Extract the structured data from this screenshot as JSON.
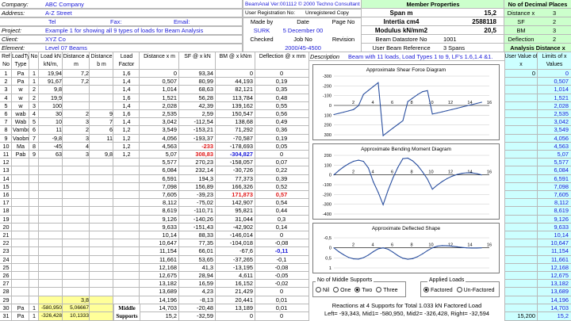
{
  "header_left": [
    {
      "label": "Company:",
      "value": "ABC Company"
    },
    {
      "label": "Address:",
      "value": "A-Z Street"
    },
    {
      "label": "",
      "value": ""
    },
    {
      "label": "Project:",
      "value": "Example 1 for showing all 9 types of loads for Beam Analysis"
    },
    {
      "label": "Client:",
      "value": "XYZ Co"
    },
    {
      "label": "Element:",
      "value": "Level 07 Beams"
    }
  ],
  "contact": {
    "tel": "Tel",
    "fax": "Fax:",
    "email": "Email:"
  },
  "program": {
    "name": "BeamAnal  Ver:001112  © 2000 Techno Consultants",
    "reg_label": "User Registration No:",
    "reg_value": "Unregistered Copy"
  },
  "made_by": {
    "made_by_label": "Made by",
    "date_label": "Date",
    "page_label": "Page No",
    "made_by": "SURK",
    "date": "5 December 00",
    "checked_label": "Checked",
    "job_label": "Job No",
    "revision_label": "Revision",
    "job_no": "2000/45-4500"
  },
  "member": {
    "title": "Member Properties",
    "rows": [
      {
        "label": "Span m",
        "value": "15,2"
      },
      {
        "label": "Intertia cm4",
        "value": "2588118"
      },
      {
        "label": "Modulus kN/mm2",
        "value": "20,5"
      },
      {
        "label": "Beam Datastore No",
        "value": "1001"
      },
      {
        "label": "User Beam Reference",
        "value": "3 Spans"
      }
    ]
  },
  "decimals": {
    "title": "No of Decimal Places",
    "rows": [
      {
        "label": "Distance x",
        "value": "3"
      },
      {
        "label": "SF",
        "value": "2"
      },
      {
        "label": "BM",
        "value": "3"
      },
      {
        "label": "Deflection",
        "value": "2"
      }
    ]
  },
  "analysis": {
    "title": "Analysis Distance x",
    "col1": "User Value of x",
    "col2": "Limits of x Values",
    "user_first": "0",
    "user_last": "15,200",
    "limits": [
      "0",
      "0,507",
      "1,014",
      "1,521",
      "2,028",
      "2,535",
      "3,042",
      "3,549",
      "4,056",
      "4,563",
      "5,07",
      "5,577",
      "6,084",
      "6,591",
      "7,098",
      "7,605",
      "8,112",
      "8,619",
      "9,126",
      "9,633",
      "10,14",
      "10,647",
      "11,154",
      "11,661",
      "12,168",
      "12,675",
      "13,182",
      "13,689",
      "14,196",
      "14,703",
      "15,2"
    ]
  },
  "load_headers": [
    "Ref No",
    "LoadType Type",
    "No",
    "Load kN kN/m, kNm",
    "Distance a m",
    "Distance b m",
    "Load Factor"
  ],
  "result_headers": [
    "Distance x m",
    "SF @ x kN",
    "BM @ x kNm",
    "Deflection @ x mm"
  ],
  "description_label": "Description",
  "description": "Beam with 11 loads, Load Types 1 to 9, LF's 1.6,1.4 &1.",
  "loads": [
    {
      "ref": "1",
      "type": "Pa",
      "no": "1",
      "load": "19,94",
      "a": "7,2",
      "b": "",
      "lf": "1,6"
    },
    {
      "ref": "2",
      "type": "Pa",
      "no": "1",
      "load": "91,67",
      "a": "7,2",
      "b": "",
      "lf": "1,4"
    },
    {
      "ref": "3",
      "type": "w",
      "no": "2",
      "load": "9,8",
      "a": "",
      "b": "",
      "lf": "1,4"
    },
    {
      "ref": "4",
      "type": "w",
      "no": "2",
      "load": "19,9",
      "a": "",
      "b": "",
      "lf": "1,6"
    },
    {
      "ref": "5",
      "type": "w",
      "no": "3",
      "load": "100",
      "a": "",
      "b": "",
      "lf": "1,4"
    },
    {
      "ref": "6",
      "type": "wab",
      "no": "4",
      "load": "30",
      "a": "2",
      "b": "9",
      "lf": "1,6"
    },
    {
      "ref": "7",
      "type": "Wab",
      "no": "5",
      "load": "10",
      "a": "3",
      "b": "7",
      "lf": "1,4"
    },
    {
      "ref": "8",
      "type": "Vambo",
      "no": "6",
      "load": "11",
      "a": "2",
      "b": "6",
      "lf": "1,2"
    },
    {
      "ref": "9",
      "type": "Vaobm",
      "no": "7",
      "load": "-9,8",
      "a": "3",
      "b": "11",
      "lf": "1,2"
    },
    {
      "ref": "10",
      "type": "Ma",
      "no": "8",
      "load": "-45",
      "a": "4",
      "b": "",
      "lf": "1,2"
    },
    {
      "ref": "11",
      "type": "Pab",
      "no": "9",
      "load": "63",
      "a": "3",
      "b": "9,8",
      "lf": "1,2"
    },
    {
      "ref": "12",
      "type": "",
      "no": "",
      "load": "",
      "a": "",
      "b": "",
      "lf": ""
    },
    {
      "ref": "13",
      "type": "",
      "no": "",
      "load": "",
      "a": "",
      "b": "",
      "lf": ""
    },
    {
      "ref": "14",
      "type": "",
      "no": "",
      "load": "",
      "a": "",
      "b": "",
      "lf": ""
    },
    {
      "ref": "15",
      "type": "",
      "no": "",
      "load": "",
      "a": "",
      "b": "",
      "lf": ""
    },
    {
      "ref": "16",
      "type": "",
      "no": "",
      "load": "",
      "a": "",
      "b": "",
      "lf": ""
    },
    {
      "ref": "17",
      "type": "",
      "no": "",
      "load": "",
      "a": "",
      "b": "",
      "lf": ""
    },
    {
      "ref": "18",
      "type": "",
      "no": "",
      "load": "",
      "a": "",
      "b": "",
      "lf": ""
    },
    {
      "ref": "19",
      "type": "",
      "no": "",
      "load": "",
      "a": "",
      "b": "",
      "lf": ""
    },
    {
      "ref": "20",
      "type": "",
      "no": "",
      "load": "",
      "a": "",
      "b": "",
      "lf": ""
    },
    {
      "ref": "21",
      "type": "",
      "no": "",
      "load": "",
      "a": "",
      "b": "",
      "lf": ""
    },
    {
      "ref": "22",
      "type": "",
      "no": "",
      "load": "",
      "a": "",
      "b": "",
      "lf": ""
    },
    {
      "ref": "23",
      "type": "",
      "no": "",
      "load": "",
      "a": "",
      "b": "",
      "lf": ""
    },
    {
      "ref": "24",
      "type": "",
      "no": "",
      "load": "",
      "a": "",
      "b": "",
      "lf": ""
    },
    {
      "ref": "25",
      "type": "",
      "no": "",
      "load": "",
      "a": "",
      "b": "",
      "lf": ""
    },
    {
      "ref": "26",
      "type": "",
      "no": "",
      "load": "",
      "a": "",
      "b": "",
      "lf": ""
    },
    {
      "ref": "27",
      "type": "",
      "no": "",
      "load": "",
      "a": "",
      "b": "",
      "lf": ""
    },
    {
      "ref": "28",
      "type": "",
      "no": "",
      "load": "",
      "a": "",
      "b": "",
      "lf": ""
    },
    {
      "ref": "29",
      "type": "",
      "no": "",
      "load": "",
      "a": "3,8",
      "b": "",
      "lf": ""
    },
    {
      "ref": "30",
      "type": "Pa",
      "no": "1",
      "load": "-580,950",
      "a": "5,06667",
      "b": "",
      "lf": "1"
    },
    {
      "ref": "31",
      "type": "Pa",
      "no": "1",
      "load": "-326,428",
      "a": "10,1333",
      "b": "",
      "lf": "1"
    }
  ],
  "middle_supports_label": "Middle Supports",
  "results": [
    {
      "x": "0",
      "sf": "93,34",
      "bm": "0",
      "d": "0"
    },
    {
      "x": "0,507",
      "sf": "80,99",
      "bm": "44,193",
      "d": "0,19"
    },
    {
      "x": "1,014",
      "sf": "68,63",
      "bm": "82,121",
      "d": "0,35"
    },
    {
      "x": "1,521",
      "sf": "56,28",
      "bm": "113,784",
      "d": "0,48"
    },
    {
      "x": "2,028",
      "sf": "42,39",
      "bm": "139,162",
      "d": "0,55"
    },
    {
      "x": "2,535",
      "sf": "2,59",
      "bm": "150,547",
      "d": "0,56"
    },
    {
      "x": "3,042",
      "sf": "-112,54",
      "bm": "138,68",
      "d": "0,49"
    },
    {
      "x": "3,549",
      "sf": "-153,21",
      "bm": "71,292",
      "d": "0,36"
    },
    {
      "x": "4,056",
      "sf": "-193,37",
      "bm": "-70,587",
      "d": "0,19"
    },
    {
      "x": "4,563",
      "sf": "-233",
      "bm": "-178,693",
      "d": "0,05"
    },
    {
      "x": "5,07",
      "sf": "308,83",
      "bm": "-304,827",
      "d": "0"
    },
    {
      "x": "5,577",
      "sf": "270,23",
      "bm": "-158,057",
      "d": "0,07"
    },
    {
      "x": "6,084",
      "sf": "232,14",
      "bm": "-30,726",
      "d": "0,22"
    },
    {
      "x": "6,591",
      "sf": "194,3",
      "bm": "77,373",
      "d": "0,39"
    },
    {
      "x": "7,098",
      "sf": "156,89",
      "bm": "166,326",
      "d": "0,52"
    },
    {
      "x": "7,605",
      "sf": "-39,23",
      "bm": "171,873",
      "d": "0,57"
    },
    {
      "x": "8,112",
      "sf": "-75,02",
      "bm": "142,907",
      "d": "0,54"
    },
    {
      "x": "8,619",
      "sf": "-110,71",
      "bm": "95,821",
      "d": "0,44"
    },
    {
      "x": "9,126",
      "sf": "-140,26",
      "bm": "31,044",
      "d": "0,3"
    },
    {
      "x": "9,633",
      "sf": "-151,43",
      "bm": "-42,902",
      "d": "0,14"
    },
    {
      "x": "10,14",
      "sf": "88,33",
      "bm": "-146,014",
      "d": "0"
    },
    {
      "x": "10,647",
      "sf": "77,35",
      "bm": "-104,018",
      "d": "-0,08"
    },
    {
      "x": "11,154",
      "sf": "66,01",
      "bm": "-67,6",
      "d": "-0,11"
    },
    {
      "x": "11,661",
      "sf": "53,65",
      "bm": "-37,265",
      "d": "-0,1"
    },
    {
      "x": "12,168",
      "sf": "41,3",
      "bm": "-13,195",
      "d": "-0,08"
    },
    {
      "x": "12,675",
      "sf": "28,94",
      "bm": "4,611",
      "d": "-0,05"
    },
    {
      "x": "13,182",
      "sf": "16,59",
      "bm": "16,152",
      "d": "-0,02"
    },
    {
      "x": "13,689",
      "sf": "4,23",
      "bm": "21,429",
      "d": "0"
    },
    {
      "x": "14,196",
      "sf": "-8,13",
      "bm": "20,441",
      "d": "0,01"
    },
    {
      "x": "14,703",
      "sf": "-20,48",
      "bm": "13,189",
      "d": "0,01"
    },
    {
      "x": "15,2",
      "sf": "-32,59",
      "bm": "0",
      "d": "0"
    }
  ],
  "highlights": {
    "sf_red": [
      9,
      10
    ],
    "bm_red": [
      15
    ],
    "bm_blue": [
      10
    ],
    "d_red": [
      15
    ],
    "d_blue": [
      22
    ]
  },
  "charts": {
    "sf_title": "Approximate Shear Force Diagram",
    "bm_title": "Approximate Bending Moment Diagram",
    "d_title": "Approximate Deflected Shape",
    "x_ticks": [
      "2",
      "4",
      "6",
      "8",
      "10",
      "12",
      "14",
      "16"
    ],
    "sf_y": [
      "300",
      "200",
      "100",
      "0",
      "-100",
      "-200",
      "-300"
    ],
    "bm_y": [
      "-400",
      "-300",
      "-200",
      "-100",
      "0",
      "100",
      "200"
    ],
    "d_y": [
      "-0,5",
      "0",
      "0,5",
      "1"
    ]
  },
  "chart_data": [
    {
      "type": "line",
      "title": "Approximate Shear Force Diagram",
      "xlabel": "",
      "ylabel": "",
      "xlim": [
        0,
        16
      ],
      "ylim": [
        -300,
        300
      ],
      "x": [
        0,
        0.507,
        1.014,
        1.521,
        2.028,
        2.535,
        3.042,
        3.549,
        4.056,
        4.563,
        5.07,
        5.577,
        6.084,
        6.591,
        7.098,
        7.605,
        8.112,
        8.619,
        9.126,
        9.633,
        10.14,
        10.647,
        11.154,
        11.661,
        12.168,
        12.675,
        13.182,
        13.689,
        14.196,
        14.703,
        15.2
      ],
      "series": [
        {
          "values": [
            93.34,
            80.99,
            68.63,
            56.28,
            42.39,
            2.59,
            -112.54,
            -153.21,
            -193.37,
            -233,
            308.83,
            270.23,
            232.14,
            194.3,
            156.89,
            -39.23,
            -75.02,
            -110.71,
            -140.26,
            -151.43,
            88.33,
            77.35,
            66.01,
            53.65,
            41.3,
            28.94,
            16.59,
            4.23,
            -8.13,
            -20.48,
            -32.59
          ]
        }
      ]
    },
    {
      "type": "line",
      "title": "Approximate Bending Moment Diagram",
      "xlabel": "",
      "ylabel": "",
      "xlim": [
        0,
        16
      ],
      "ylim": [
        -400,
        200
      ],
      "x": [
        0,
        0.507,
        1.014,
        1.521,
        2.028,
        2.535,
        3.042,
        3.549,
        4.056,
        4.563,
        5.07,
        5.577,
        6.084,
        6.591,
        7.098,
        7.605,
        8.112,
        8.619,
        9.126,
        9.633,
        10.14,
        10.647,
        11.154,
        11.661,
        12.168,
        12.675,
        13.182,
        13.689,
        14.196,
        14.703,
        15.2
      ],
      "series": [
        {
          "values": [
            0,
            44.193,
            82.121,
            113.784,
            139.162,
            150.547,
            138.68,
            71.292,
            -70.587,
            -178.693,
            -304.827,
            -158.057,
            -30.726,
            77.373,
            166.326,
            171.873,
            142.907,
            95.821,
            31.044,
            -42.902,
            -146.014,
            -104.018,
            -67.6,
            -37.265,
            -13.195,
            4.611,
            16.152,
            21.429,
            20.441,
            13.189,
            0
          ]
        }
      ]
    },
    {
      "type": "line",
      "title": "Approximate Deflected Shape",
      "xlabel": "",
      "ylabel": "",
      "xlim": [
        0,
        16
      ],
      "ylim": [
        -0.5,
        1
      ],
      "x": [
        0,
        0.507,
        1.014,
        1.521,
        2.028,
        2.535,
        3.042,
        3.549,
        4.056,
        4.563,
        5.07,
        5.577,
        6.084,
        6.591,
        7.098,
        7.605,
        8.112,
        8.619,
        9.126,
        9.633,
        10.14,
        10.647,
        11.154,
        11.661,
        12.168,
        12.675,
        13.182,
        13.689,
        14.196,
        14.703,
        15.2
      ],
      "series": [
        {
          "values": [
            0,
            0.19,
            0.35,
            0.48,
            0.55,
            0.56,
            0.49,
            0.36,
            0.19,
            0.05,
            0,
            0.07,
            0.22,
            0.39,
            0.52,
            0.57,
            0.54,
            0.44,
            0.3,
            0.14,
            0,
            -0.08,
            -0.11,
            -0.1,
            -0.08,
            -0.05,
            -0.02,
            0,
            0.01,
            0.01,
            0
          ]
        }
      ]
    }
  ],
  "supports": {
    "legend": "No of Middle Supports",
    "options": [
      "Nil",
      "One",
      "Two",
      "Three"
    ],
    "selected": "Two"
  },
  "applied": {
    "legend": "Applied Loads",
    "options": [
      "Factored",
      "Un-Factored"
    ],
    "selected": "Factored"
  },
  "reactions": {
    "line1": "Reactions at 4 Supports for Total 1.033 kN Factored Load",
    "line2": "Left= -93,343, Mid1= -580,950, Mid2= -326,428, Right= -32,594"
  },
  "colors": {
    "header_green": "#ccffcc",
    "text_blue": "#1a1ad8",
    "red": "#e01818",
    "yellow_row": "#ffff99",
    "analysis_cyan": "#ccffff",
    "curve": "#2a4f9f"
  }
}
